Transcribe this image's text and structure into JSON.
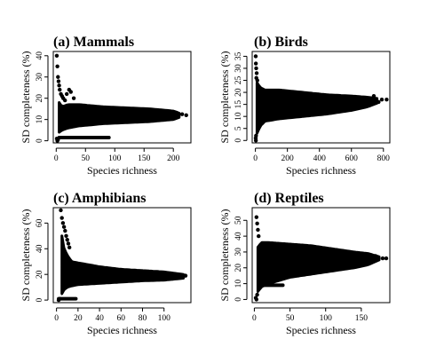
{
  "chart_data": [
    {
      "type": "scatter",
      "title": "(a) Mammals",
      "xlabel": "Species richness",
      "ylabel": "SD completeness (%)",
      "xlim": [
        -5,
        230
      ],
      "ylim": [
        -1,
        42
      ],
      "xticks": [
        0,
        50,
        100,
        150,
        200
      ],
      "yticks": [
        0,
        10,
        20,
        30,
        40
      ],
      "cloud": {
        "x_start": 5,
        "x_end": 210,
        "upper": [
          [
            5,
            18
          ],
          [
            10,
            16
          ],
          [
            20,
            17
          ],
          [
            40,
            17
          ],
          [
            80,
            16
          ],
          [
            120,
            15.5
          ],
          [
            160,
            15
          ],
          [
            200,
            14
          ],
          [
            210,
            13
          ]
        ],
        "lower": [
          [
            5,
            4
          ],
          [
            10,
            5
          ],
          [
            20,
            6
          ],
          [
            40,
            7
          ],
          [
            80,
            8
          ],
          [
            120,
            8.5
          ],
          [
            160,
            9
          ],
          [
            200,
            10
          ],
          [
            210,
            11
          ]
        ]
      },
      "extra_points": [
        [
          1,
          40
        ],
        [
          2,
          35
        ],
        [
          3,
          30
        ],
        [
          4,
          28
        ],
        [
          5,
          26
        ],
        [
          6,
          24
        ],
        [
          8,
          22
        ],
        [
          10,
          21
        ],
        [
          12,
          20
        ],
        [
          15,
          19
        ],
        [
          18,
          22
        ],
        [
          22,
          24
        ],
        [
          25,
          23
        ],
        [
          30,
          20
        ],
        [
          2,
          0
        ],
        [
          1,
          1
        ],
        [
          3,
          0.5
        ],
        [
          222,
          12
        ],
        [
          215,
          12.5
        ]
      ],
      "baseline": {
        "y": 1.5,
        "x_start": 5,
        "x_end": 90
      }
    },
    {
      "type": "scatter",
      "title": "(b) Birds",
      "xlabel": "Species richness",
      "ylabel": "SD completeness (%)",
      "xlim": [
        -20,
        840
      ],
      "ylim": [
        -1,
        37
      ],
      "xticks": [
        0,
        200,
        400,
        600,
        800
      ],
      "yticks": [
        0,
        5,
        10,
        15,
        20,
        25,
        30,
        35
      ],
      "cloud": {
        "x_start": 10,
        "x_end": 760,
        "upper": [
          [
            10,
            24
          ],
          [
            30,
            22
          ],
          [
            60,
            21
          ],
          [
            150,
            21
          ],
          [
            300,
            20
          ],
          [
            450,
            19
          ],
          [
            600,
            18.5
          ],
          [
            700,
            18
          ],
          [
            760,
            17.5
          ]
        ],
        "lower": [
          [
            10,
            3
          ],
          [
            30,
            6
          ],
          [
            60,
            8
          ],
          [
            150,
            9
          ],
          [
            300,
            10
          ],
          [
            450,
            11
          ],
          [
            600,
            12.5
          ],
          [
            700,
            14
          ],
          [
            760,
            15.5
          ]
        ]
      },
      "extra_points": [
        [
          2,
          35
        ],
        [
          3,
          32
        ],
        [
          5,
          30
        ],
        [
          8,
          28
        ],
        [
          6,
          26
        ],
        [
          12,
          25
        ],
        [
          4,
          2
        ],
        [
          3,
          0
        ],
        [
          2,
          1
        ],
        [
          790,
          17
        ],
        [
          820,
          17
        ],
        [
          770,
          16
        ],
        [
          740,
          18.5
        ]
      ],
      "baseline": null
    },
    {
      "type": "scatter",
      "title": "(c) Amphibians",
      "xlabel": "Species richness",
      "ylabel": "SD completeness (%)",
      "xlim": [
        -3,
        125
      ],
      "ylim": [
        -2,
        72
      ],
      "xticks": [
        0,
        20,
        40,
        60,
        80,
        100
      ],
      "yticks": [
        0,
        20,
        40,
        60
      ],
      "cloud": {
        "x_start": 5,
        "x_end": 118,
        "upper": [
          [
            5,
            50
          ],
          [
            7,
            40
          ],
          [
            10,
            35
          ],
          [
            14,
            30
          ],
          [
            20,
            29
          ],
          [
            40,
            26
          ],
          [
            60,
            24
          ],
          [
            80,
            23
          ],
          [
            100,
            22
          ],
          [
            118,
            20
          ]
        ],
        "lower": [
          [
            5,
            5
          ],
          [
            7,
            8
          ],
          [
            10,
            10
          ],
          [
            14,
            11
          ],
          [
            20,
            12
          ],
          [
            40,
            13
          ],
          [
            60,
            14
          ],
          [
            80,
            15
          ],
          [
            100,
            15.5
          ],
          [
            118,
            17
          ]
        ]
      },
      "extra_points": [
        [
          4,
          70
        ],
        [
          5,
          64
        ],
        [
          6,
          60
        ],
        [
          7,
          57
        ],
        [
          8,
          54
        ],
        [
          9,
          50
        ],
        [
          10,
          47
        ],
        [
          11,
          44
        ],
        [
          12,
          41
        ],
        [
          3,
          1
        ],
        [
          2,
          0
        ],
        [
          120,
          19
        ],
        [
          116,
          18
        ]
      ],
      "baseline": {
        "y": 1,
        "x_start": 2,
        "x_end": 18
      }
    },
    {
      "type": "scatter",
      "title": "(d) Reptiles",
      "xlabel": "Species richness",
      "ylabel": "SD completeness (%)",
      "xlim": [
        -3,
        190
      ],
      "ylim": [
        -2,
        58
      ],
      "xticks": [
        0,
        50,
        100,
        150
      ],
      "yticks": [
        0,
        10,
        20,
        30,
        40,
        50
      ],
      "cloud": {
        "x_start": 5,
        "x_end": 175,
        "upper": [
          [
            5,
            33
          ],
          [
            10,
            36
          ],
          [
            20,
            36
          ],
          [
            50,
            35
          ],
          [
            80,
            34
          ],
          [
            110,
            32
          ],
          [
            140,
            30
          ],
          [
            160,
            29
          ],
          [
            175,
            27
          ]
        ],
        "lower": [
          [
            5,
            5
          ],
          [
            10,
            8
          ],
          [
            20,
            10
          ],
          [
            50,
            14
          ],
          [
            80,
            16
          ],
          [
            110,
            18
          ],
          [
            140,
            20
          ],
          [
            160,
            22
          ],
          [
            175,
            25
          ]
        ]
      },
      "extra_points": [
        [
          3,
          52
        ],
        [
          4,
          48
        ],
        [
          5,
          44
        ],
        [
          6,
          40
        ],
        [
          2,
          1
        ],
        [
          3,
          0
        ],
        [
          4,
          3
        ],
        [
          180,
          26
        ],
        [
          185,
          26
        ],
        [
          170,
          27.5
        ]
      ],
      "baseline": {
        "y": 9,
        "x_start": 10,
        "x_end": 40
      }
    }
  ]
}
